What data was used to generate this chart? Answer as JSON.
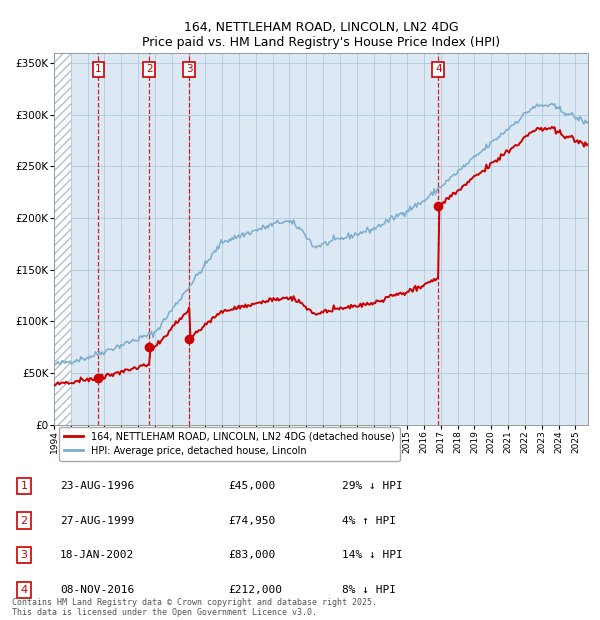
{
  "title": "164, NETTLEHAM ROAD, LINCOLN, LN2 4DG",
  "subtitle": "Price paid vs. HM Land Registry's House Price Index (HPI)",
  "background_color": "#dce9f5",
  "hatch_color": "#c8d8e8",
  "grid_color": "#b0c8dc",
  "red_line_color": "#cc0000",
  "blue_line_color": "#7aadcc",
  "sale_marker_color": "#cc0000",
  "vline_color": "#cc0000",
  "ylim": [
    0,
    360000
  ],
  "yticks": [
    0,
    50000,
    100000,
    150000,
    200000,
    250000,
    300000,
    350000
  ],
  "xlim_start": 1994.0,
  "xlim_end": 2025.75,
  "hatch_end": 1995.0,
  "sales": [
    {
      "label": "1",
      "date": 1996.645,
      "price": 45000
    },
    {
      "label": "2",
      "date": 1999.655,
      "price": 74950
    },
    {
      "label": "3",
      "date": 2002.046,
      "price": 83000
    },
    {
      "label": "4",
      "date": 2016.853,
      "price": 212000
    }
  ],
  "legend_label_red": "164, NETTLEHAM ROAD, LINCOLN, LN2 4DG (detached house)",
  "legend_label_blue": "HPI: Average price, detached house, Lincoln",
  "footnote": "Contains HM Land Registry data © Crown copyright and database right 2025.\nThis data is licensed under the Open Government Licence v3.0.",
  "table_rows": [
    [
      "1",
      "23-AUG-1996",
      "£45,000",
      "29% ↓ HPI"
    ],
    [
      "2",
      "27-AUG-1999",
      "£74,950",
      "4% ↑ HPI"
    ],
    [
      "3",
      "18-JAN-2002",
      "£83,000",
      "14% ↓ HPI"
    ],
    [
      "4",
      "08-NOV-2016",
      "£212,000",
      "8% ↓ HPI"
    ]
  ]
}
